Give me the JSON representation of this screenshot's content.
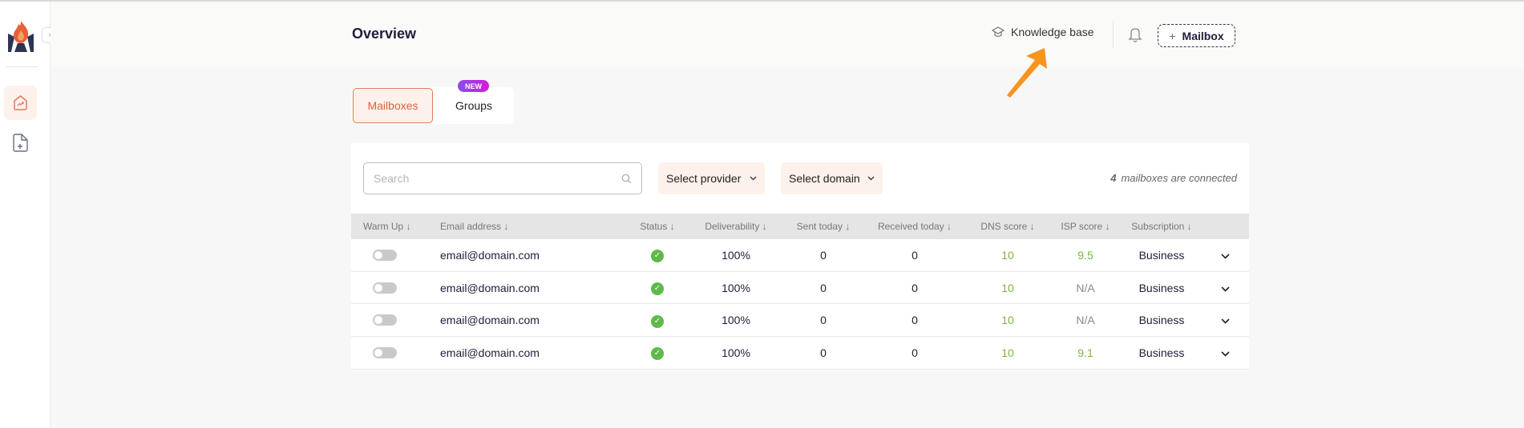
{
  "header": {
    "title": "Overview",
    "knowledge_base": "Knowledge base",
    "add_mailbox": "Mailbox",
    "add_icon": "+"
  },
  "tabs": [
    {
      "label": "Mailboxes",
      "active": true
    },
    {
      "label": "Groups",
      "badge": "NEW"
    }
  ],
  "filters": {
    "search_placeholder": "Search",
    "provider": "Select provider",
    "domain": "Select domain",
    "count": "4",
    "count_label": "mailboxes are connected"
  },
  "table": {
    "columns": [
      "Warm Up",
      "Email address",
      "Status",
      "Deliverability",
      "Sent today",
      "Received today",
      "DNS score",
      "ISP score",
      "Subscription"
    ],
    "rows": [
      {
        "warmup": false,
        "email": "email@domain.com",
        "status": "ok",
        "deliverability": "100%",
        "sent": "0",
        "received": "0",
        "dns": "10",
        "isp": "9.5",
        "subscription": "Business"
      },
      {
        "warmup": false,
        "email": "email@domain.com",
        "status": "ok",
        "deliverability": "100%",
        "sent": "0",
        "received": "0",
        "dns": "10",
        "isp": "N/A",
        "subscription": "Business"
      },
      {
        "warmup": false,
        "email": "email@domain.com",
        "status": "ok",
        "deliverability": "100%",
        "sent": "0",
        "received": "0",
        "dns": "10",
        "isp": "N/A",
        "subscription": "Business"
      },
      {
        "warmup": false,
        "email": "email@domain.com",
        "status": "ok",
        "deliverability": "100%",
        "sent": "0",
        "received": "0",
        "dns": "10",
        "isp": "9.1",
        "subscription": "Business"
      }
    ]
  },
  "colors": {
    "accent": "#e47b5a",
    "accent_bg": "#fdf1ec",
    "score_green": "#7cb342",
    "status_green": "#5db94a",
    "annotation_arrow": "#f7941d"
  }
}
